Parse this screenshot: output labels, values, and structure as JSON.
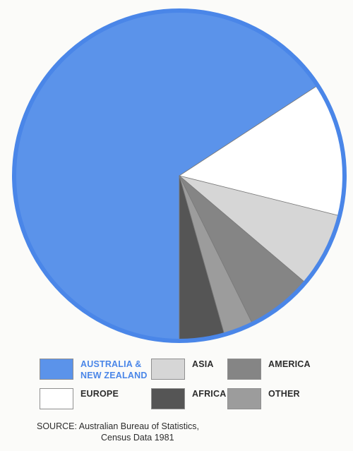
{
  "chart_data": {
    "type": "pie",
    "title": "",
    "slices": [
      {
        "label": "AUSTRALIA &\nNEW ZEALAND",
        "value": 65.8,
        "color": "#5b93ea"
      },
      {
        "label": "EUROPE",
        "value": 13.1,
        "color": "#ffffff"
      },
      {
        "label": "ASIA",
        "value": 7.3,
        "color": "#d6d6d6"
      },
      {
        "label": "AMERICA",
        "value": 6.5,
        "color": "#858585"
      },
      {
        "label": "OTHER",
        "value": 2.9,
        "color": "#9c9c9c"
      },
      {
        "label": "AFRICA",
        "value": 4.4,
        "color": "#555555"
      }
    ],
    "legend_placement": "bottom",
    "outline_color": "#4a86e8"
  },
  "source": {
    "prefix": "SOURCE:",
    "line1": "Australian Bureau of Statistics,",
    "line2": "Census Data 1981"
  }
}
